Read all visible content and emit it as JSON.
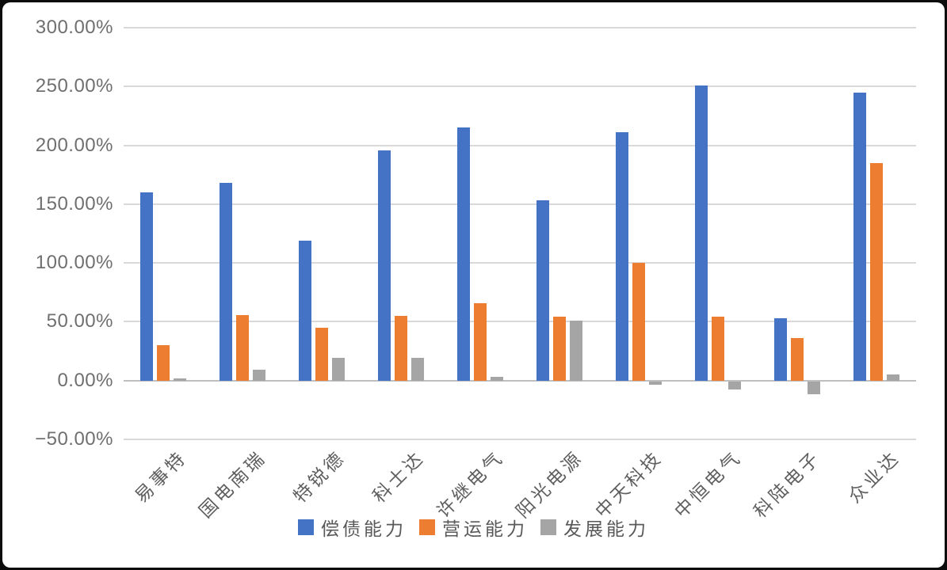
{
  "chart_data": {
    "type": "bar",
    "categories": [
      "易事特",
      "国电南瑞",
      "特锐德",
      "科士达",
      "许继电气",
      "阳光电源",
      "中天科技",
      "中恒电气",
      "科陆电子",
      "众业达"
    ],
    "series": [
      {
        "name": "偿债能力",
        "color": "#4472C4",
        "values": [
          160,
          168,
          119,
          196,
          215,
          153,
          211,
          251,
          53,
          245
        ]
      },
      {
        "name": "营运能力",
        "color": "#ED7D31",
        "values": [
          30,
          56,
          45,
          55,
          66,
          54,
          100,
          54,
          36,
          185
        ]
      },
      {
        "name": "发展能力",
        "color": "#A5A5A5",
        "values": [
          2,
          9,
          19,
          19,
          3,
          51,
          -3,
          -7,
          -11,
          5
        ]
      }
    ],
    "y_axis": {
      "min": -50,
      "max": 300,
      "step": 50,
      "format": "percent",
      "tick_labels": [
        "300.00%",
        "250.00%",
        "200.00%",
        "150.00%",
        "100.00%",
        "50.00%",
        "0.00%",
        "−50.00%"
      ]
    },
    "grid": true,
    "legend_position": "bottom",
    "colors": {
      "gridline": "#D9D9D9",
      "axis_line": "#BFBFBF",
      "tick_text": "#6F6F6F",
      "category_text": "#5F5F5F",
      "legend_text": "#595959",
      "background": "#FFFFFF",
      "frame": "#0C0C0C"
    }
  }
}
